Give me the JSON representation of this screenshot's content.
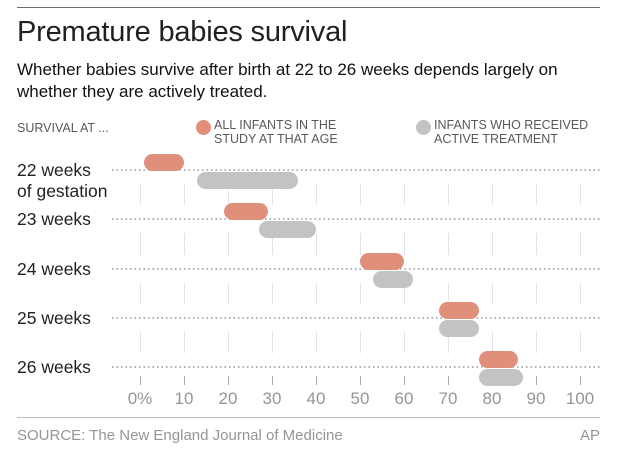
{
  "header": {
    "title": "Premature babies survival",
    "subtitle": "Whether babies survive after birth at 22 to 26 weeks depends largely on whether they are actively treated."
  },
  "legend": {
    "axis_note": "SURVIVAL AT ...",
    "items": [
      {
        "label_line1": "ALL INFANTS IN THE",
        "label_line2": "STUDY AT THAT AGE",
        "color": "#e08f7b"
      },
      {
        "label_line1": "INFANTS WHO RECEIVED",
        "label_line2": "ACTIVE TREATMENT",
        "color": "#c3c3c3"
      }
    ]
  },
  "chart_data": {
    "type": "range-bar",
    "orientation": "horizontal",
    "unit": "percent surviving",
    "categories": [
      "22 weeks of gestation",
      "23 weeks",
      "24 weeks",
      "25 weeks",
      "26 weeks"
    ],
    "category_label_lines": [
      [
        "22 weeks",
        "of gestation"
      ],
      [
        "23 weeks"
      ],
      [
        "24 weeks"
      ],
      [
        "25 weeks"
      ],
      [
        "26 weeks"
      ]
    ],
    "series": [
      {
        "name": "All infants in the study at that age",
        "color": "#e08f7b",
        "ranges": [
          [
            1,
            10
          ],
          [
            19,
            29
          ],
          [
            50,
            60
          ],
          [
            68,
            77
          ],
          [
            77,
            86
          ]
        ],
        "midpoints": [
          5.5,
          24,
          55,
          72.5,
          81.5
        ]
      },
      {
        "name": "Infants who received active treatment",
        "color": "#c3c3c3",
        "ranges": [
          [
            13,
            36
          ],
          [
            27,
            40
          ],
          [
            53,
            62
          ],
          [
            68,
            77
          ],
          [
            77,
            87
          ]
        ],
        "midpoints": [
          24.5,
          33.5,
          57.5,
          72.5,
          82
        ]
      }
    ],
    "xlim": [
      0,
      100
    ],
    "x_ticks": [
      0,
      10,
      20,
      30,
      40,
      50,
      60,
      70,
      80,
      90,
      100
    ],
    "x_tick_labels": [
      "0%",
      "10",
      "20",
      "30",
      "40",
      "50",
      "60",
      "70",
      "80",
      "90",
      "100"
    ],
    "grid": "vertical light segments between dotted category rows",
    "legend_position": "top"
  },
  "colors": {
    "accent_salmon": "#e08f7b",
    "accent_gray": "#c3c3c3",
    "dotted_line": "#b1b1b1",
    "gridline": "#e3e3e3",
    "axis_text": "#939598",
    "legend_text": "#58595b",
    "text": "#231f20"
  },
  "footer": {
    "source": "SOURCE: The New England Journal of Medicine",
    "credit": "AP"
  }
}
